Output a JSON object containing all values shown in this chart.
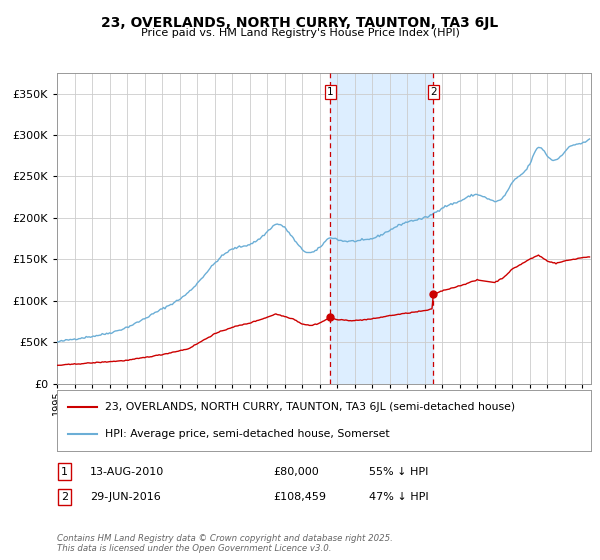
{
  "title": "23, OVERLANDS, NORTH CURRY, TAUNTON, TA3 6JL",
  "subtitle": "Price paid vs. HM Land Registry's House Price Index (HPI)",
  "legend_line1": "23, OVERLANDS, NORTH CURRY, TAUNTON, TA3 6JL (semi-detached house)",
  "legend_line2": "HPI: Average price, semi-detached house, Somerset",
  "annotation1_label": "1",
  "annotation1_date": "13-AUG-2010",
  "annotation1_price": "£80,000",
  "annotation1_hpi": "55% ↓ HPI",
  "annotation2_label": "2",
  "annotation2_date": "29-JUN-2016",
  "annotation2_price": "£108,459",
  "annotation2_hpi": "47% ↓ HPI",
  "sale1_x": 2010.617,
  "sale1_y": 80000,
  "sale2_x": 2016.493,
  "sale2_y": 108459,
  "vline1_x": 2010.617,
  "vline2_x": 2016.493,
  "shade_color": "#ddeeff",
  "hpi_color": "#6baed6",
  "price_color": "#cc0000",
  "background_color": "#ffffff",
  "grid_color": "#cccccc",
  "footer_text": "Contains HM Land Registry data © Crown copyright and database right 2025.\nThis data is licensed under the Open Government Licence v3.0.",
  "ylim": [
    0,
    375000
  ],
  "xlim_start": 1995.0,
  "xlim_end": 2025.5,
  "hpi_anchors_x": [
    1995.0,
    1997.0,
    1999.0,
    2001.0,
    2002.5,
    2004.0,
    2005.0,
    2006.0,
    2007.0,
    2007.5,
    2008.5,
    2009.0,
    2009.5,
    2010.0,
    2010.617,
    2011.0,
    2012.0,
    2013.0,
    2014.0,
    2015.0,
    2016.0,
    2016.493,
    2017.0,
    2018.0,
    2019.0,
    2020.0,
    2020.5,
    2021.0,
    2022.0,
    2022.5,
    2023.0,
    2023.5,
    2024.0,
    2024.5,
    2025.0,
    2025.4
  ],
  "hpi_anchors_y": [
    50000,
    57000,
    68000,
    90000,
    110000,
    145000,
    162000,
    168000,
    183000,
    192000,
    175000,
    162000,
    158000,
    164000,
    176000,
    174000,
    172000,
    175000,
    185000,
    195000,
    200000,
    205000,
    212000,
    220000,
    228000,
    220000,
    225000,
    242000,
    265000,
    285000,
    275000,
    270000,
    280000,
    288000,
    290000,
    295000
  ],
  "price_anchors_x": [
    1995.0,
    1997.0,
    1999.0,
    2001.0,
    2002.5,
    2004.0,
    2005.0,
    2006.0,
    2007.0,
    2007.5,
    2008.5,
    2009.0,
    2009.5,
    2010.0,
    2010.617,
    2011.0,
    2012.0,
    2013.0,
    2014.0,
    2015.0,
    2016.0,
    2016.45,
    2016.493,
    2016.55,
    2017.0,
    2018.0,
    2019.0,
    2020.0,
    2020.5,
    2021.0,
    2022.0,
    2022.5,
    2023.0,
    2023.5,
    2024.0,
    2024.5,
    2025.0,
    2025.4
  ],
  "price_anchors_y": [
    22000,
    25000,
    28000,
    35000,
    42000,
    60000,
    68000,
    73000,
    80000,
    84000,
    78000,
    72000,
    70000,
    73000,
    80000,
    77000,
    76000,
    78000,
    82000,
    85000,
    88000,
    90000,
    108459,
    108000,
    112000,
    118000,
    125000,
    122000,
    128000,
    138000,
    150000,
    155000,
    148000,
    145000,
    148000,
    150000,
    152000,
    153000
  ]
}
